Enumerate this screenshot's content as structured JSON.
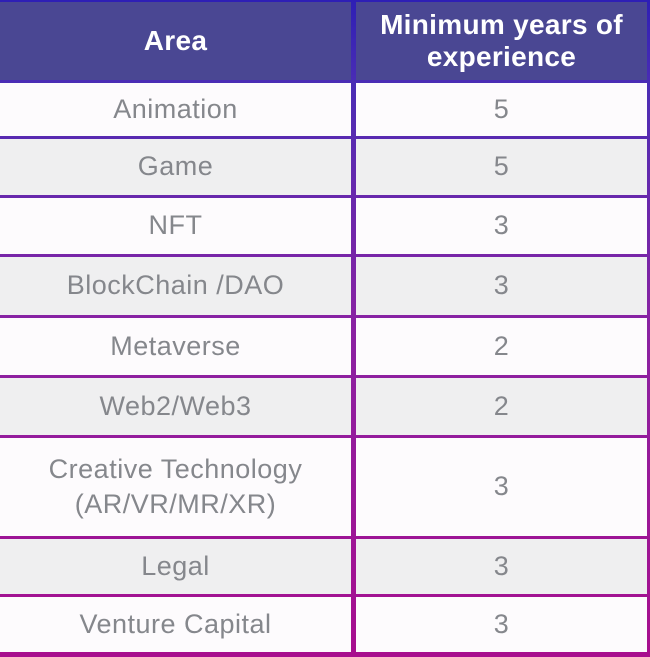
{
  "table": {
    "columns": [
      {
        "label": "Area"
      },
      {
        "label": "Minimum years of experience"
      }
    ],
    "rows": [
      {
        "area": "Animation",
        "years": "5"
      },
      {
        "area": "Game",
        "years": "5"
      },
      {
        "area": "NFT",
        "years": "3"
      },
      {
        "area": "BlockChain /DAO",
        "years": "3"
      },
      {
        "area": "Metaverse",
        "years": "2"
      },
      {
        "area": "Web2/Web3",
        "years": "2"
      },
      {
        "area": "Creative Technology (AR/VR/MR/XR)",
        "years": "3"
      },
      {
        "area": "Legal",
        "years": "3"
      },
      {
        "area": "Venture Capital",
        "years": "3"
      }
    ]
  },
  "colors": {
    "header_bg": "#4A4793",
    "header_text": "#FFFFFF",
    "row_white": "#FDFBFD",
    "row_gray": "#EFEFF0",
    "cell_text": "#85878C",
    "border_gradient_top": "#2E1FB5",
    "border_gradient_upper": "#4B2DB5",
    "border_gradient_mid": "#8A22A2",
    "border_gradient_bottom": "#A80E8E"
  }
}
